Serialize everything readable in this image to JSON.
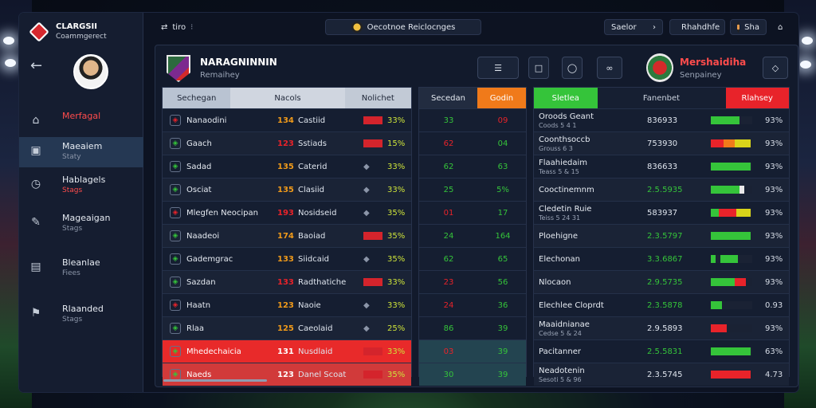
{
  "app": {
    "name": "CLARGSII",
    "subtitle": "Coammgerect"
  },
  "sidebar": {
    "items": [
      {
        "label": "Merfagal",
        "sub": "",
        "icon": "inbox-icon",
        "red": true
      },
      {
        "label": "Maeaiem",
        "sub": "Staty",
        "icon": "image-icon",
        "active": true
      },
      {
        "label": "Hablagels",
        "sub": "Stags",
        "icon": "clock-icon"
      },
      {
        "label": "Mageaigan",
        "sub": "Stags",
        "icon": "edit-icon"
      },
      {
        "label": "Bleanlae",
        "sub": "Fiees",
        "icon": "document-icon"
      },
      {
        "label": "Rlaanded",
        "sub": "Stags",
        "icon": "flag-icon"
      }
    ]
  },
  "topbar": {
    "left": "tiro",
    "mid": "Oecotnoe  Reiclocnges",
    "search": "Saelor",
    "user": "Rhahdhfe",
    "user2": "Sha"
  },
  "header": {
    "title": "NARAGNINNIN",
    "subtitle": "Remaihey",
    "right_title": "Mershaidiha",
    "right_subtitle": "Senpainey",
    "b1": "□",
    "b2": "◯",
    "b3": "∞"
  },
  "left_table": {
    "headers": [
      "Sechegan",
      "Nacols",
      "Nolichet"
    ],
    "rows": [
      {
        "name": "Nanaodini",
        "num": "134",
        "stat": "Castiid",
        "pct": "33%",
        "bar": "#d4242c",
        "hl": ""
      },
      {
        "name": "Gaach",
        "num": "123",
        "stat": "Sstiads",
        "pct": "15%",
        "bar": "#d4242c",
        "hl": ""
      },
      {
        "name": "Sadad",
        "num": "135",
        "stat": "Caterid",
        "pct": "33%",
        "bar": "",
        "hl": ""
      },
      {
        "name": "Osciat",
        "num": "135",
        "stat": "Clasiid",
        "pct": "33%",
        "bar": "",
        "hl": ""
      },
      {
        "name": "Mlegfen Neocipan",
        "num": "193",
        "stat": "Nosidseid",
        "pct": "35%",
        "bar": "",
        "hl": ""
      },
      {
        "name": "Naadeoi",
        "num": "174",
        "stat": "Baoiad",
        "pct": "35%",
        "bar": "#d4242c",
        "hl": ""
      },
      {
        "name": "Gademgrac",
        "num": "133",
        "stat": "Siidcaid",
        "pct": "35%",
        "bar": "",
        "hl": ""
      },
      {
        "name": "Sazdan",
        "num": "133",
        "stat": "Radthatiche",
        "pct": "33%",
        "bar": "#d4242c",
        "hl": ""
      },
      {
        "name": "Haatn",
        "num": "123",
        "stat": "Naoie",
        "pct": "33%",
        "bar": "",
        "hl": ""
      },
      {
        "name": "Rlaa",
        "num": "125",
        "stat": "Caeolaid",
        "pct": "25%",
        "bar": "",
        "hl": ""
      },
      {
        "name": "Mhedechaicia",
        "num": "131",
        "stat": "Nusdlaid",
        "pct": "33%",
        "bar": "#d4242c",
        "hl": "hl"
      },
      {
        "name": "Naeds",
        "num": "123",
        "stat": "Danel Scoat",
        "pct": "35%",
        "bar": "#d4242c",
        "hl": "hl2"
      }
    ]
  },
  "mid_table": {
    "headers": [
      "Secedan",
      "Godin"
    ],
    "rows": [
      [
        "33",
        "09"
      ],
      [
        "62",
        "04"
      ],
      [
        "62",
        "63"
      ],
      [
        "25",
        "5%"
      ],
      [
        "01",
        "17"
      ],
      [
        "24",
        "164"
      ],
      [
        "62",
        "65"
      ],
      [
        "23",
        "56"
      ],
      [
        "24",
        "36"
      ],
      [
        "86",
        "39"
      ],
      [
        "03",
        "39"
      ],
      [
        "30",
        "39"
      ]
    ]
  },
  "right_table": {
    "headers": [
      "Sletlea",
      "Fanenbet",
      "Rlahsey"
    ],
    "rows": [
      {
        "name": "Oroods Geant",
        "sub": "Coods 5 4 1",
        "val": "836933",
        "pct": "93%"
      },
      {
        "name": "Coonthsoccb",
        "sub": "Grouss 6 3",
        "val": "753930",
        "pct": "93%"
      },
      {
        "name": "Flaahiedaim",
        "sub": "Teass 5 & 15",
        "val": "836633",
        "pct": "93%"
      },
      {
        "name": "Cooctinemnm",
        "sub": "",
        "val": "2.5.5935",
        "pct": "93%"
      },
      {
        "name": "Cledetin Ruie",
        "sub": "Teiss 5 24 31",
        "val": "583937",
        "pct": "93%"
      },
      {
        "name": "Ploehigne",
        "sub": "",
        "val": "2.3.5797",
        "pct": "93%"
      },
      {
        "name": "Elechonan",
        "sub": "",
        "val": "3.3.6867",
        "pct": "93%"
      },
      {
        "name": "Nlocaon",
        "sub": "",
        "val": "2.9.5735",
        "pct": "93%"
      },
      {
        "name": "Elechlee Cloprdt",
        "sub": "",
        "val": "2.3.5878",
        "pct": "0.93"
      },
      {
        "name": "Maaidnianae",
        "sub": "Cedse 5 & 24",
        "val": "2.9.5893",
        "pct": "93%"
      },
      {
        "name": "Pacitanner",
        "sub": "",
        "val": "2.5.5831",
        "pct": "63%"
      },
      {
        "name": "Neadotenin",
        "sub": "Sesoti 5 & 96",
        "val": "2.3.5745",
        "pct": "4.73"
      }
    ]
  },
  "colors": {
    "green": "#35c43a",
    "red": "#e8232a",
    "orange": "#f07a1a",
    "yellow": "#d9d41a"
  }
}
